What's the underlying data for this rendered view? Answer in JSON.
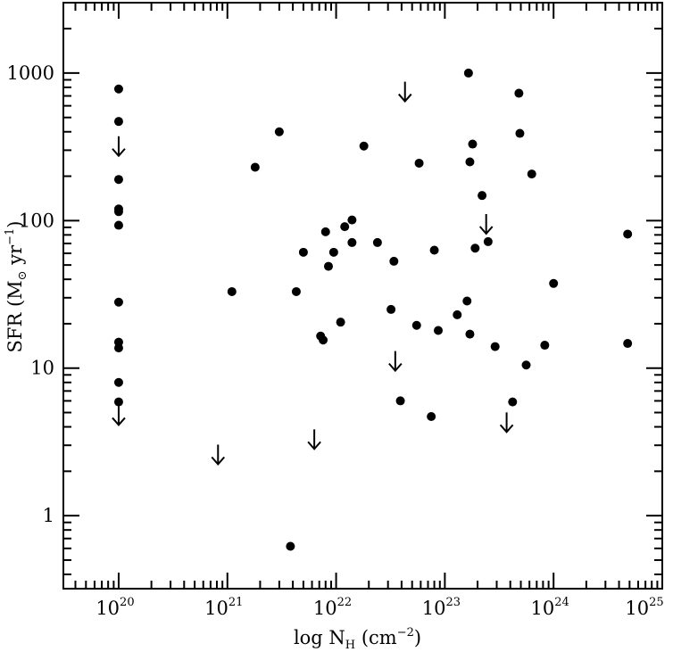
{
  "chart_data": {
    "type": "scatter",
    "title": "",
    "xlabel": {
      "main": "log N",
      "sub": "H",
      "unit_open": " (cm",
      "unit_sup": "−2",
      "unit_close": ")"
    },
    "ylabel": {
      "main": "SFR  (M",
      "sub": "⊙",
      "unit_mid": " yr",
      "unit_sup": "−1",
      "unit_close": ")"
    },
    "x_scale": "log",
    "y_scale": "log",
    "xlim": [
      3.1e+19,
      1e+25
    ],
    "ylim": [
      0.32,
      3000
    ],
    "x_ticks": [
      {
        "value": 1e+20,
        "base": "10",
        "exp": "20"
      },
      {
        "value": 1e+21,
        "base": "10",
        "exp": "21"
      },
      {
        "value": 1e+22,
        "base": "10",
        "exp": "22"
      },
      {
        "value": 1e+23,
        "base": "10",
        "exp": "23"
      },
      {
        "value": 1e+24,
        "base": "10",
        "exp": "24"
      },
      {
        "value": 1e+25,
        "base": "10",
        "exp": "25"
      }
    ],
    "y_ticks": [
      {
        "value": 1,
        "label": "1"
      },
      {
        "value": 10,
        "label": "10"
      },
      {
        "value": 100,
        "label": "100"
      },
      {
        "value": 1000,
        "label": "1000"
      }
    ],
    "grid": false,
    "legend": "none",
    "series": [
      {
        "kind": "detections",
        "marker": "filled-circle",
        "points": [
          [
            1e+20,
            780
          ],
          [
            1e+20,
            470
          ],
          [
            1e+20,
            190
          ],
          [
            1e+20,
            120
          ],
          [
            1e+20,
            115
          ],
          [
            1e+20,
            93
          ],
          [
            1e+20,
            28
          ],
          [
            1e+20,
            15
          ],
          [
            1e+20,
            13.7
          ],
          [
            1e+20,
            8
          ],
          [
            1e+20,
            5.9
          ],
          [
            1.1e+21,
            33
          ],
          [
            1.8e+21,
            230
          ],
          [
            3e+21,
            400
          ],
          [
            3.8e+21,
            0.62
          ],
          [
            4.3e+21,
            33
          ],
          [
            5e+21,
            61
          ],
          [
            7.2e+21,
            16.5
          ],
          [
            7.6e+21,
            15.5
          ],
          [
            8e+21,
            84
          ],
          [
            8.5e+21,
            49
          ],
          [
            9.5e+21,
            61
          ],
          [
            1.1e+22,
            20.5
          ],
          [
            1.2e+22,
            91
          ],
          [
            1.4e+22,
            101
          ],
          [
            1.4e+22,
            71
          ],
          [
            1.8e+22,
            320
          ],
          [
            2.4e+22,
            71
          ],
          [
            3.2e+22,
            25
          ],
          [
            3.4e+22,
            53
          ],
          [
            3.9e+22,
            6
          ],
          [
            5.5e+22,
            19.5
          ],
          [
            5.8e+22,
            245
          ],
          [
            7.5e+22,
            4.7
          ],
          [
            8e+22,
            63
          ],
          [
            8.7e+22,
            18
          ],
          [
            1.3e+23,
            23
          ],
          [
            1.6e+23,
            28.5
          ],
          [
            1.65e+23,
            1000
          ],
          [
            1.7e+23,
            250
          ],
          [
            1.7e+23,
            17
          ],
          [
            1.8e+23,
            330
          ],
          [
            1.9e+23,
            65
          ],
          [
            2.2e+23,
            148
          ],
          [
            2.5e+23,
            72
          ],
          [
            2.9e+23,
            14
          ],
          [
            4.2e+23,
            5.9
          ],
          [
            4.8e+23,
            730
          ],
          [
            4.9e+23,
            390
          ],
          [
            5.6e+23,
            10.5
          ],
          [
            6.3e+23,
            207
          ],
          [
            8.3e+23,
            14.3
          ],
          [
            1e+24,
            37.5
          ],
          [
            4.8e+24,
            81
          ],
          [
            4.8e+24,
            14.7
          ]
        ]
      },
      {
        "kind": "upper-limits",
        "marker": "down-arrow",
        "points": [
          [
            1e+20,
            320
          ],
          [
            1e+20,
            4.8
          ],
          [
            8.2e+20,
            2.6
          ],
          [
            6.3e+21,
            3.3
          ],
          [
            3.5e+22,
            11.2
          ],
          [
            4.3e+22,
            750
          ],
          [
            2.4e+23,
            95
          ],
          [
            3.7e+23,
            4.3
          ]
        ]
      }
    ]
  }
}
